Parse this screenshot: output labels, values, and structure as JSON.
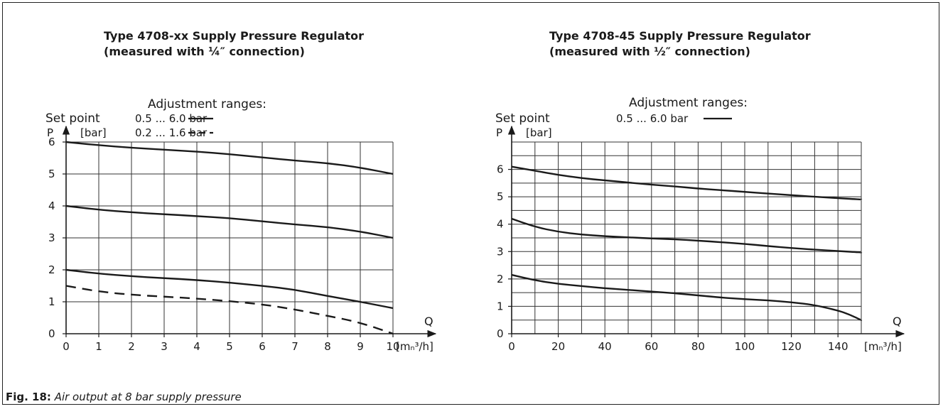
{
  "figure": {
    "caption_label": "Fig. 18:",
    "caption_text": " Air output at 8 bar supply pressure"
  },
  "chart_data": [
    {
      "type": "line",
      "title": "Type 4708-xx Supply Pressure Regulator",
      "subtitle": "(measured with ¼″ connection)",
      "legend_title": "Adjustment ranges:",
      "setpoint_label": "Set point",
      "ylabel": "P",
      "yunit": "[bar]",
      "xlabel": "Q",
      "xunit": "[mₙ³/h]",
      "xlim": [
        0,
        10
      ],
      "ylim": [
        0,
        6
      ],
      "xticks": [
        0,
        1,
        2,
        3,
        4,
        5,
        6,
        7,
        8,
        9,
        10
      ],
      "yticks": [
        0,
        1,
        2,
        3,
        4,
        5,
        6
      ],
      "legend": [
        {
          "label": "0.5 ... 6.0 bar",
          "style": "solid"
        },
        {
          "label": "0.2 ... 1.6 bar",
          "style": "dashed"
        }
      ],
      "series": [
        {
          "style": "solid",
          "x": [
            0,
            1,
            2,
            3,
            4,
            5,
            6,
            7,
            8,
            9,
            10
          ],
          "y": [
            6.0,
            5.9,
            5.82,
            5.76,
            5.7,
            5.62,
            5.52,
            5.42,
            5.34,
            5.2,
            5.0
          ]
        },
        {
          "style": "solid",
          "x": [
            0,
            1,
            2,
            3,
            4,
            5,
            6,
            7,
            8,
            9,
            10
          ],
          "y": [
            4.0,
            3.88,
            3.8,
            3.74,
            3.68,
            3.62,
            3.52,
            3.42,
            3.34,
            3.2,
            3.0
          ]
        },
        {
          "style": "solid",
          "x": [
            0,
            1,
            2,
            3,
            4,
            5,
            6,
            7,
            8,
            9,
            10
          ],
          "y": [
            2.0,
            1.88,
            1.8,
            1.74,
            1.68,
            1.6,
            1.5,
            1.38,
            1.18,
            1.0,
            0.8
          ]
        },
        {
          "style": "dashed",
          "x": [
            0,
            1,
            2,
            3,
            4,
            5,
            6,
            7,
            8,
            9,
            10
          ],
          "y": [
            1.5,
            1.32,
            1.22,
            1.16,
            1.1,
            1.02,
            0.92,
            0.76,
            0.56,
            0.35,
            0.0
          ]
        }
      ]
    },
    {
      "type": "line",
      "title": "Type 4708-45 Supply Pressure Regulator",
      "subtitle": "(measured with ½″ connection)",
      "legend_title": "Adjustment ranges:",
      "setpoint_label": "Set point",
      "ylabel": "P",
      "yunit": "[bar]",
      "xlabel": "Q",
      "xunit": "[mₙ³/h]",
      "xlim": [
        0,
        150
      ],
      "ylim": [
        0,
        7
      ],
      "xticks": [
        0,
        20,
        40,
        60,
        80,
        100,
        120,
        140
      ],
      "yticks": [
        0,
        1,
        2,
        3,
        4,
        5,
        6
      ],
      "legend": [
        {
          "label": "0.5 ... 6.0 bar",
          "style": "solid"
        }
      ],
      "series": [
        {
          "style": "solid",
          "x": [
            0,
            10,
            20,
            30,
            40,
            50,
            60,
            70,
            80,
            90,
            100,
            110,
            120,
            130,
            140,
            150
          ],
          "y": [
            6.1,
            5.95,
            5.8,
            5.68,
            5.6,
            5.52,
            5.44,
            5.38,
            5.3,
            5.24,
            5.18,
            5.12,
            5.06,
            5.0,
            4.95,
            4.9
          ]
        },
        {
          "style": "solid",
          "x": [
            0,
            10,
            20,
            30,
            40,
            50,
            60,
            70,
            80,
            90,
            100,
            110,
            120,
            130,
            140,
            150
          ],
          "y": [
            4.2,
            3.9,
            3.72,
            3.62,
            3.56,
            3.52,
            3.48,
            3.45,
            3.4,
            3.34,
            3.28,
            3.2,
            3.13,
            3.07,
            3.02,
            2.97
          ]
        },
        {
          "style": "solid",
          "x": [
            0,
            10,
            20,
            30,
            40,
            50,
            60,
            70,
            80,
            90,
            100,
            110,
            120,
            130,
            140,
            145,
            150
          ],
          "y": [
            2.15,
            1.95,
            1.82,
            1.74,
            1.66,
            1.6,
            1.54,
            1.48,
            1.4,
            1.32,
            1.26,
            1.22,
            1.15,
            1.05,
            0.85,
            0.7,
            0.5
          ]
        }
      ]
    }
  ]
}
